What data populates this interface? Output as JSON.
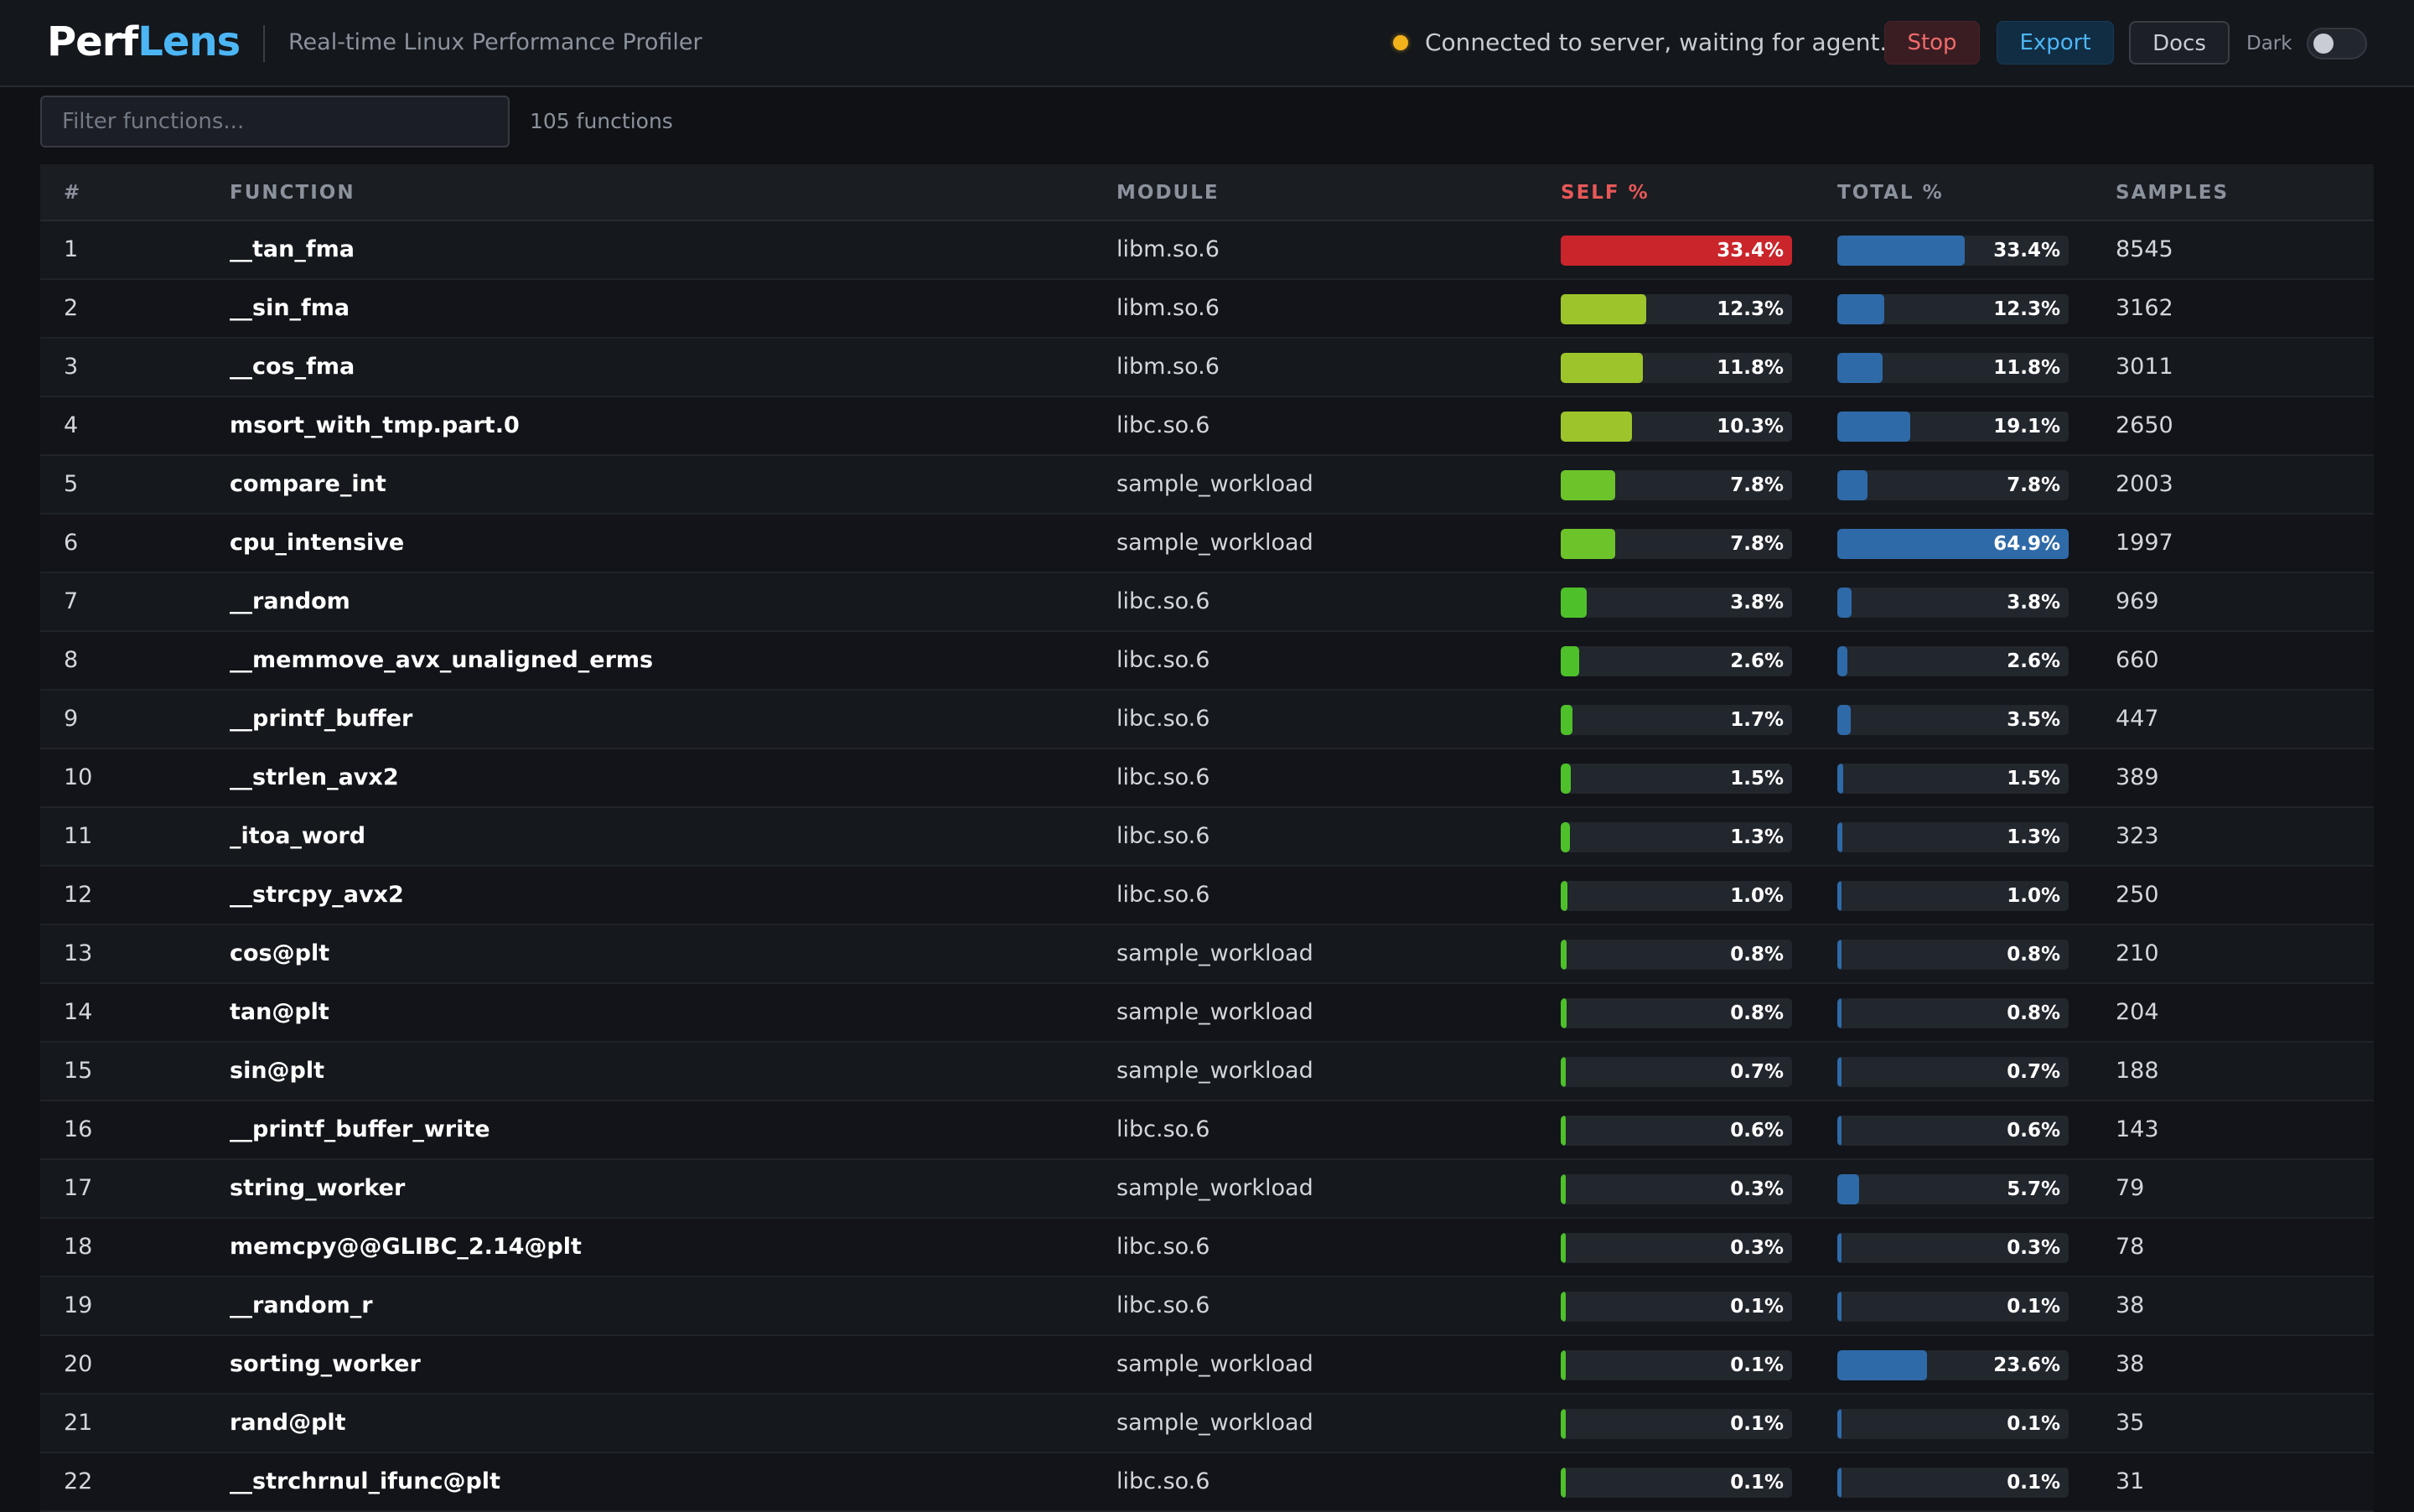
{
  "header": {
    "logo_part1": "Perf",
    "logo_part2": "Lens",
    "subtitle": "Real-time Linux Performance Profiler",
    "status_text": "Connected to server, waiting for agent...",
    "stop_label": "Stop",
    "export_label": "Export",
    "docs_label": "Docs",
    "dark_label": "Dark",
    "dark_mode_on": false
  },
  "filter": {
    "placeholder": "Filter functions...",
    "value": "",
    "count_text": "105 functions"
  },
  "colors": {
    "accent": "#4cb6f5",
    "self_hot": "#c9252b",
    "self_high": "#9dc52b",
    "self_mid": "#6cc42a",
    "self_low": "#4ec12a",
    "total_bar": "#2f6aa8"
  },
  "table": {
    "columns": [
      "#",
      "FUNCTION",
      "MODULE",
      "SELF %",
      "TOTAL %",
      "SAMPLES"
    ],
    "rows": [
      {
        "rank": "1",
        "function": "__tan_fma",
        "module": "libm.so.6",
        "self_pct": 33.4,
        "self_text": "33.4%",
        "total_pct": 33.4,
        "total_text": "33.4%",
        "samples": "8545"
      },
      {
        "rank": "2",
        "function": "__sin_fma",
        "module": "libm.so.6",
        "self_pct": 12.3,
        "self_text": "12.3%",
        "total_pct": 12.3,
        "total_text": "12.3%",
        "samples": "3162"
      },
      {
        "rank": "3",
        "function": "__cos_fma",
        "module": "libm.so.6",
        "self_pct": 11.8,
        "self_text": "11.8%",
        "total_pct": 11.8,
        "total_text": "11.8%",
        "samples": "3011"
      },
      {
        "rank": "4",
        "function": "msort_with_tmp.part.0",
        "module": "libc.so.6",
        "self_pct": 10.3,
        "self_text": "10.3%",
        "total_pct": 19.1,
        "total_text": "19.1%",
        "samples": "2650"
      },
      {
        "rank": "5",
        "function": "compare_int",
        "module": "sample_workload",
        "self_pct": 7.8,
        "self_text": "7.8%",
        "total_pct": 7.8,
        "total_text": "7.8%",
        "samples": "2003"
      },
      {
        "rank": "6",
        "function": "cpu_intensive",
        "module": "sample_workload",
        "self_pct": 7.8,
        "self_text": "7.8%",
        "total_pct": 64.9,
        "total_text": "64.9%",
        "samples": "1997"
      },
      {
        "rank": "7",
        "function": "__random",
        "module": "libc.so.6",
        "self_pct": 3.8,
        "self_text": "3.8%",
        "total_pct": 3.8,
        "total_text": "3.8%",
        "samples": "969"
      },
      {
        "rank": "8",
        "function": "__memmove_avx_unaligned_erms",
        "module": "libc.so.6",
        "self_pct": 2.6,
        "self_text": "2.6%",
        "total_pct": 2.6,
        "total_text": "2.6%",
        "samples": "660"
      },
      {
        "rank": "9",
        "function": "__printf_buffer",
        "module": "libc.so.6",
        "self_pct": 1.7,
        "self_text": "1.7%",
        "total_pct": 3.5,
        "total_text": "3.5%",
        "samples": "447"
      },
      {
        "rank": "10",
        "function": "__strlen_avx2",
        "module": "libc.so.6",
        "self_pct": 1.5,
        "self_text": "1.5%",
        "total_pct": 1.5,
        "total_text": "1.5%",
        "samples": "389"
      },
      {
        "rank": "11",
        "function": "_itoa_word",
        "module": "libc.so.6",
        "self_pct": 1.3,
        "self_text": "1.3%",
        "total_pct": 1.3,
        "total_text": "1.3%",
        "samples": "323"
      },
      {
        "rank": "12",
        "function": "__strcpy_avx2",
        "module": "libc.so.6",
        "self_pct": 1.0,
        "self_text": "1.0%",
        "total_pct": 1.0,
        "total_text": "1.0%",
        "samples": "250"
      },
      {
        "rank": "13",
        "function": "cos@plt",
        "module": "sample_workload",
        "self_pct": 0.8,
        "self_text": "0.8%",
        "total_pct": 0.8,
        "total_text": "0.8%",
        "samples": "210"
      },
      {
        "rank": "14",
        "function": "tan@plt",
        "module": "sample_workload",
        "self_pct": 0.8,
        "self_text": "0.8%",
        "total_pct": 0.8,
        "total_text": "0.8%",
        "samples": "204"
      },
      {
        "rank": "15",
        "function": "sin@plt",
        "module": "sample_workload",
        "self_pct": 0.7,
        "self_text": "0.7%",
        "total_pct": 0.7,
        "total_text": "0.7%",
        "samples": "188"
      },
      {
        "rank": "16",
        "function": "__printf_buffer_write",
        "module": "libc.so.6",
        "self_pct": 0.6,
        "self_text": "0.6%",
        "total_pct": 0.6,
        "total_text": "0.6%",
        "samples": "143"
      },
      {
        "rank": "17",
        "function": "string_worker",
        "module": "sample_workload",
        "self_pct": 0.3,
        "self_text": "0.3%",
        "total_pct": 5.7,
        "total_text": "5.7%",
        "samples": "79"
      },
      {
        "rank": "18",
        "function": "memcpy@@GLIBC_2.14@plt",
        "module": "libc.so.6",
        "self_pct": 0.3,
        "self_text": "0.3%",
        "total_pct": 0.3,
        "total_text": "0.3%",
        "samples": "78"
      },
      {
        "rank": "19",
        "function": "__random_r",
        "module": "libc.so.6",
        "self_pct": 0.1,
        "self_text": "0.1%",
        "total_pct": 0.1,
        "total_text": "0.1%",
        "samples": "38"
      },
      {
        "rank": "20",
        "function": "sorting_worker",
        "module": "sample_workload",
        "self_pct": 0.1,
        "self_text": "0.1%",
        "total_pct": 23.6,
        "total_text": "23.6%",
        "samples": "38"
      },
      {
        "rank": "21",
        "function": "rand@plt",
        "module": "sample_workload",
        "self_pct": 0.1,
        "self_text": "0.1%",
        "total_pct": 0.1,
        "total_text": "0.1%",
        "samples": "35"
      },
      {
        "rank": "22",
        "function": "__strchrnul_ifunc@plt",
        "module": "libc.so.6",
        "self_pct": 0.1,
        "self_text": "0.1%",
        "total_pct": 0.1,
        "total_text": "0.1%",
        "samples": "31"
      }
    ]
  }
}
